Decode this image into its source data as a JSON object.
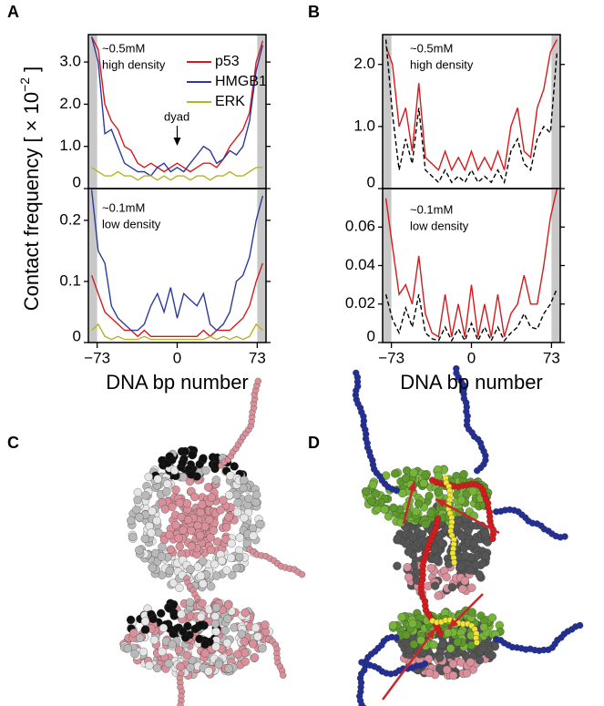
{
  "panel_labels": [
    "A",
    "B",
    "C",
    "D"
  ],
  "chart_data": [
    {
      "type": "line",
      "ylabel": "Contact frequency [ × 10",
      "ylabel_superscript": "−2",
      "ylabel_end": "]",
      "x": [
        -78,
        -72,
        -66,
        -60,
        -54,
        -48,
        -42,
        -36,
        -30,
        -24,
        -18,
        -12,
        -6,
        0,
        6,
        12,
        18,
        24,
        30,
        36,
        42,
        48,
        54,
        60,
        66,
        72,
        78
      ],
      "xlim": [
        -81,
        81
      ],
      "ylim": [
        0,
        3.65
      ],
      "yticks": [
        0,
        {
          "value": 1,
          "label": "1.0"
        },
        {
          "value": 2,
          "label": "2.0"
        },
        {
          "value": 3,
          "label": "3.0"
        }
      ],
      "shaded": [
        [
          -81,
          -73
        ],
        [
          73,
          81
        ]
      ],
      "legend": "top",
      "annotations": [
        "~0.5mM",
        "high density",
        "dyad"
      ],
      "series": [
        {
          "name": "p53",
          "color": "#d7191c",
          "values": [
            3.6,
            3.3,
            2.0,
            1.6,
            1.4,
            1.0,
            0.9,
            0.6,
            0.5,
            0.6,
            0.5,
            0.4,
            0.5,
            0.6,
            0.5,
            0.4,
            0.5,
            0.6,
            0.6,
            0.5,
            0.7,
            1.0,
            1.2,
            1.4,
            1.8,
            3.0,
            3.5
          ]
        },
        {
          "name": "HMGB1",
          "color": "#2b3a9b",
          "values": [
            3.6,
            3.0,
            1.3,
            1.4,
            1.0,
            0.6,
            0.5,
            0.4,
            0.4,
            0.3,
            0.5,
            0.6,
            0.4,
            0.5,
            0.4,
            0.6,
            0.8,
            1.0,
            0.9,
            0.6,
            0.7,
            0.9,
            0.8,
            1.0,
            1.6,
            2.8,
            3.4
          ]
        },
        {
          "name": "ERK",
          "color": "#b5b524",
          "values": [
            0.5,
            0.4,
            0.3,
            0.3,
            0.4,
            0.3,
            0.3,
            0.2,
            0.3,
            0.3,
            0.2,
            0.3,
            0.2,
            0.3,
            0.3,
            0.2,
            0.3,
            0.3,
            0.2,
            0.3,
            0.3,
            0.4,
            0.3,
            0.3,
            0.4,
            0.5,
            0.5
          ]
        }
      ]
    },
    {
      "type": "line",
      "xlabel": "DNA bp number",
      "x": [
        -78,
        -72,
        -66,
        -60,
        -54,
        -48,
        -42,
        -36,
        -30,
        -24,
        -18,
        -12,
        -6,
        0,
        6,
        12,
        18,
        24,
        30,
        36,
        42,
        48,
        54,
        60,
        66,
        72,
        78
      ],
      "xlim": [
        -81,
        81
      ],
      "ylim": [
        0,
        0.252
      ],
      "xticks": [
        {
          "value": -73,
          "label": "−73"
        },
        0,
        73
      ],
      "yticks": [
        0,
        0.1,
        0.2
      ],
      "shaded": [
        [
          -81,
          -73
        ],
        [
          73,
          81
        ]
      ],
      "annotations": [
        "~0.1mM",
        "low density"
      ],
      "series": [
        {
          "color": "#d7191c",
          "values": [
            0.11,
            0.08,
            0.05,
            0.04,
            0.03,
            0.02,
            0.02,
            0.01,
            0.02,
            0.01,
            0.01,
            0.01,
            0.01,
            0.01,
            0.01,
            0.01,
            0.01,
            0.02,
            0.01,
            0.02,
            0.02,
            0.02,
            0.03,
            0.04,
            0.06,
            0.1,
            0.13
          ]
        },
        {
          "color": "#2b3a9b",
          "values": [
            0.25,
            0.15,
            0.13,
            0.06,
            0.04,
            0.03,
            0.02,
            0.02,
            0.03,
            0.06,
            0.08,
            0.05,
            0.09,
            0.04,
            0.08,
            0.07,
            0.06,
            0.08,
            0.03,
            0.02,
            0.03,
            0.05,
            0.1,
            0.11,
            0.14,
            0.2,
            0.24
          ]
        },
        {
          "color": "#b5b524",
          "values": [
            0.02,
            0.03,
            0.01,
            0.005,
            0.01,
            0.005,
            0.005,
            0.005,
            0.01,
            0.005,
            0.005,
            0.005,
            0.005,
            0.005,
            0.005,
            0.005,
            0.005,
            0.005,
            0.01,
            0.005,
            0.01,
            0.005,
            0.01,
            0.005,
            0.01,
            0.03,
            0.02
          ]
        }
      ]
    },
    {
      "type": "line",
      "x": [
        -78,
        -72,
        -66,
        -60,
        -54,
        -48,
        -42,
        -36,
        -30,
        -24,
        -18,
        -12,
        -6,
        0,
        6,
        12,
        18,
        24,
        30,
        36,
        42,
        48,
        54,
        60,
        66,
        72,
        78
      ],
      "xlim": [
        -81,
        81
      ],
      "ylim": [
        0,
        2.48
      ],
      "yticks": [
        0,
        {
          "value": 1,
          "label": "1.0"
        },
        {
          "value": 2,
          "label": "2.0"
        }
      ],
      "shaded": [
        [
          -81,
          -73
        ],
        [
          73,
          81
        ]
      ],
      "annotations": [
        "~0.5mM",
        "high density"
      ],
      "series": [
        {
          "color": "#d7191c",
          "values": [
            2.3,
            2.0,
            1.0,
            1.3,
            0.6,
            1.7,
            0.5,
            0.4,
            0.3,
            0.6,
            0.3,
            0.5,
            0.3,
            0.6,
            0.3,
            0.5,
            0.3,
            0.6,
            0.3,
            1.0,
            1.3,
            0.6,
            0.5,
            1.3,
            1.6,
            2.2,
            2.4
          ]
        },
        {
          "color": "#000000",
          "dash": true,
          "values": [
            2.4,
            1.2,
            0.3,
            0.8,
            0.4,
            1.3,
            0.3,
            0.2,
            0.1,
            0.3,
            0.1,
            0.2,
            0.1,
            0.3,
            0.1,
            0.2,
            0.1,
            0.3,
            0.1,
            0.6,
            0.8,
            0.4,
            0.3,
            0.8,
            1.0,
            0.9,
            2.2
          ]
        }
      ]
    },
    {
      "type": "line",
      "xlabel": "DNA bp number",
      "x": [
        -78,
        -72,
        -66,
        -60,
        -54,
        -48,
        -42,
        -36,
        -30,
        -24,
        -18,
        -12,
        -6,
        0,
        6,
        12,
        18,
        24,
        30,
        36,
        42,
        48,
        54,
        60,
        66,
        72,
        78
      ],
      "xlim": [
        -81,
        81
      ],
      "ylim": [
        0,
        0.08
      ],
      "xticks": [
        {
          "value": -73,
          "label": "−73"
        },
        0,
        73
      ],
      "yticks": [
        0,
        0.02,
        0.04,
        0.06
      ],
      "shaded": [
        [
          -81,
          -73
        ],
        [
          73,
          81
        ]
      ],
      "annotations": [
        "~0.1mM",
        "low density"
      ],
      "series": [
        {
          "color": "#d7191c",
          "values": [
            0.075,
            0.05,
            0.025,
            0.03,
            0.02,
            0.045,
            0.015,
            0.005,
            0.003,
            0.025,
            0.003,
            0.02,
            0.003,
            0.03,
            0.003,
            0.02,
            0.003,
            0.025,
            0.003,
            0.015,
            0.02,
            0.035,
            0.02,
            0.02,
            0.04,
            0.065,
            0.08
          ]
        },
        {
          "color": "#000000",
          "dash": true,
          "values": [
            0.025,
            0.012,
            0.005,
            0.018,
            0.008,
            0.025,
            0.005,
            0.002,
            0.001,
            0.008,
            0.001,
            0.007,
            0.001,
            0.01,
            0.001,
            0.008,
            0.001,
            0.008,
            0.001,
            0.005,
            0.008,
            0.015,
            0.008,
            0.007,
            0.015,
            0.02,
            0.028
          ]
        }
      ]
    }
  ]
}
